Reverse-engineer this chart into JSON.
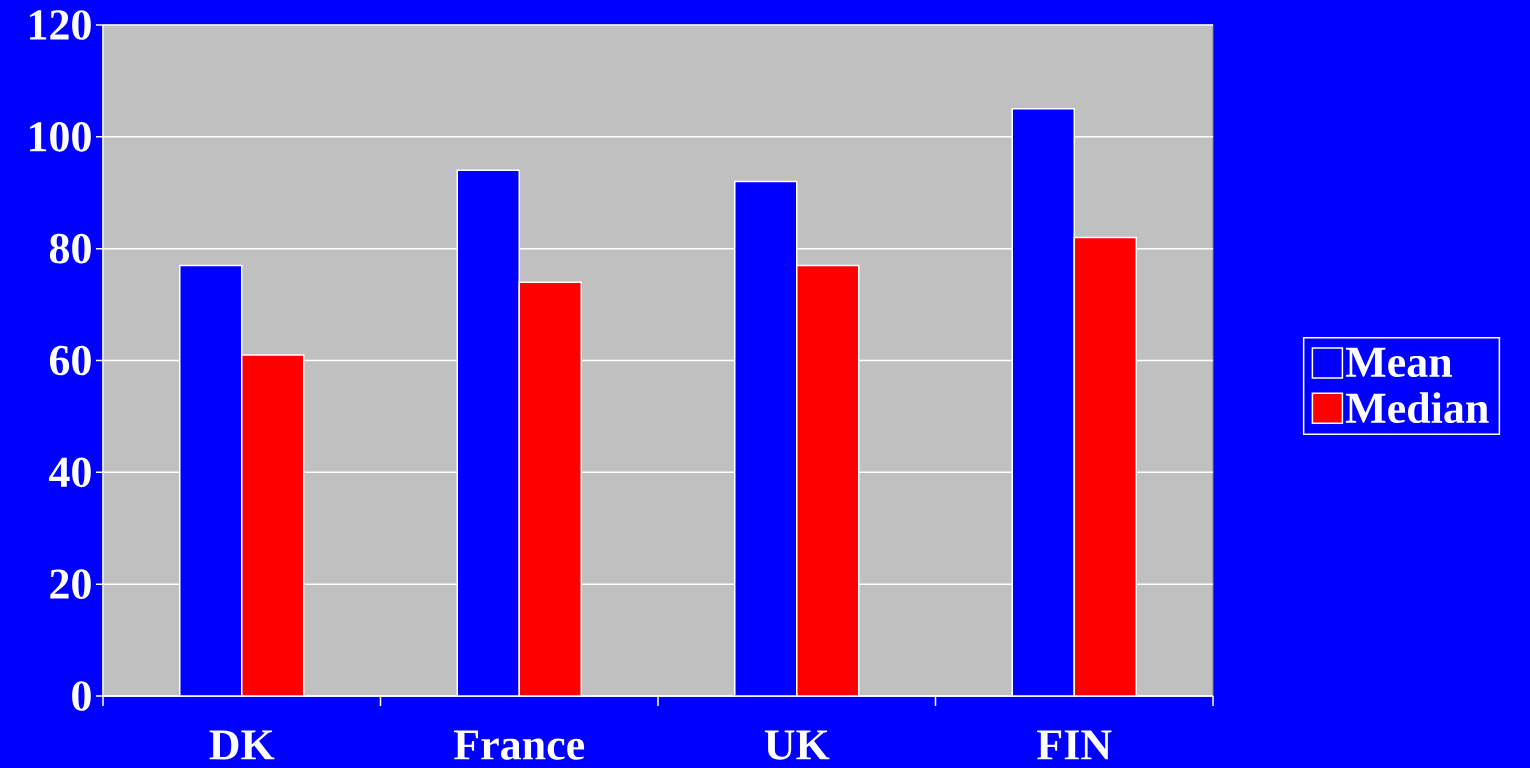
{
  "chart_data": {
    "type": "bar",
    "categories": [
      "DK",
      "France",
      "UK",
      "FIN"
    ],
    "series": [
      {
        "name": "Mean",
        "color": "#0000ff",
        "values": [
          77,
          94,
          92,
          105
        ]
      },
      {
        "name": "Median",
        "color": "#ff0000",
        "values": [
          61,
          74,
          77,
          82
        ]
      }
    ],
    "ylim": [
      0,
      120
    ],
    "yticks": [
      0,
      20,
      40,
      60,
      80,
      100,
      120
    ],
    "grid": "y",
    "legend": "right"
  }
}
